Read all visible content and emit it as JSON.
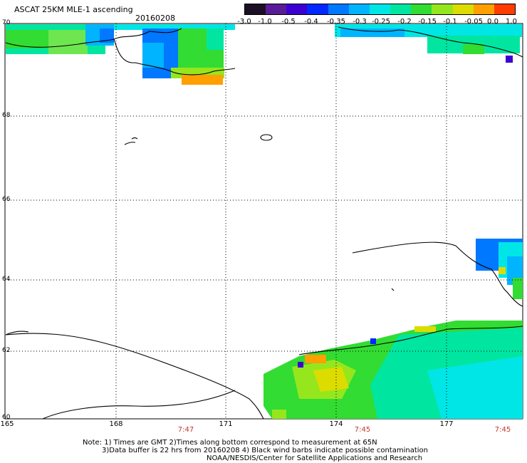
{
  "header": {
    "title": "ASCAT 25KM MLE-1 ascending",
    "date": "20160208"
  },
  "colorbar": {
    "labels": [
      "-3.0",
      "-1.0",
      "-0.5",
      "-0.4",
      "-0.35",
      "-0.3",
      "-0.25",
      "-0.2",
      "-0.15",
      "-0.1",
      "-0.05",
      "0.0",
      "1.0"
    ],
    "colors": [
      "#1a0f24",
      "#5a1c96",
      "#3c00d2",
      "#0028ff",
      "#0078ff",
      "#00b4ff",
      "#00e6e6",
      "#00e6a0",
      "#32dc32",
      "#96e61e",
      "#dcdc00",
      "#ffa000",
      "#ff3c00"
    ]
  },
  "axes": {
    "y_labels": [
      "70",
      "68",
      "66",
      "64",
      "62",
      "60"
    ],
    "x_labels": [
      "165",
      "168",
      "171",
      "174",
      "177"
    ],
    "times": [
      "7:47",
      "7:45",
      "7:45"
    ]
  },
  "notes": {
    "line1": "Note: 1) Times are GMT 2)Times along bottom correspond to measurement at 65N",
    "line2": "3)Data buffer is 22 hrs from 20160208 4) Black wind barbs indicate possible contamination",
    "line3": "NOAA/NESDIS/Center for Satellite Applications and Research"
  }
}
